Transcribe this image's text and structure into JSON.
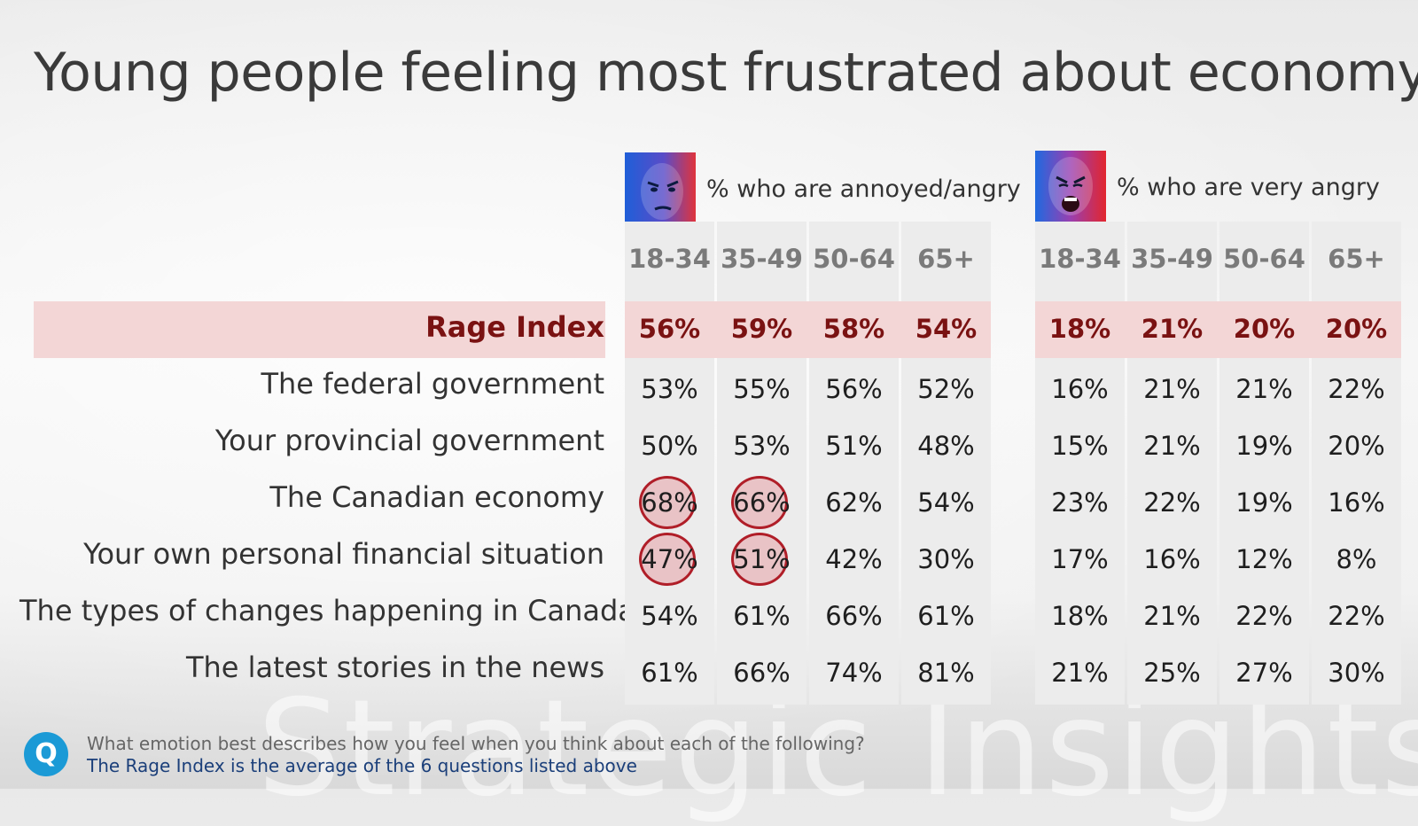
{
  "title": "Young people feeling most frustrated about economy",
  "watermark": "Strategic Insights",
  "panels": [
    {
      "label": "% who are annoyed/angry",
      "icon": "angry-face-icon"
    },
    {
      "label": "% who are very angry",
      "icon": "screaming-face-icon"
    }
  ],
  "footnote": {
    "question": "What emotion best describes how you feel when you think about each of the following?",
    "note": "The Rage Index is the average of the 6 questions listed above",
    "icon": "q-logo-icon"
  },
  "colors": {
    "rage_text": "#7a1212",
    "rage_band": "#f3d6d6",
    "highlight": "#b01e28",
    "note_text": "#1b3f7a"
  },
  "chart_data": {
    "type": "table",
    "title": "Young people feeling most frustrated about economy",
    "column_groups": [
      {
        "name": "% who are annoyed/angry",
        "columns": [
          "18-34",
          "35-49",
          "50-64",
          "65+"
        ]
      },
      {
        "name": "% who are very angry",
        "columns": [
          "18-34",
          "35-49",
          "50-64",
          "65+"
        ]
      }
    ],
    "rows": [
      {
        "label": "Rage Index",
        "annoyed": [
          "56%",
          "59%",
          "58%",
          "54%"
        ],
        "very_angry": [
          "18%",
          "21%",
          "20%",
          "20%"
        ],
        "highlight_row": true
      },
      {
        "label": "The federal government",
        "annoyed": [
          "53%",
          "55%",
          "56%",
          "52%"
        ],
        "very_angry": [
          "16%",
          "21%",
          "21%",
          "22%"
        ]
      },
      {
        "label": "Your provincial government",
        "annoyed": [
          "50%",
          "53%",
          "51%",
          "48%"
        ],
        "very_angry": [
          "15%",
          "21%",
          "19%",
          "20%"
        ]
      },
      {
        "label": "The Canadian economy",
        "annoyed": [
          "68%",
          "66%",
          "62%",
          "54%"
        ],
        "very_angry": [
          "23%",
          "22%",
          "19%",
          "16%"
        ],
        "circled_annoyed": [
          0,
          1
        ]
      },
      {
        "label": "Your own personal financial situation",
        "annoyed": [
          "47%",
          "51%",
          "42%",
          "30%"
        ],
        "very_angry": [
          "17%",
          "16%",
          "12%",
          "8%"
        ],
        "circled_annoyed": [
          0,
          1
        ]
      },
      {
        "label": "The types of changes happening in Canada",
        "annoyed": [
          "54%",
          "61%",
          "66%",
          "61%"
        ],
        "very_angry": [
          "18%",
          "21%",
          "22%",
          "22%"
        ]
      },
      {
        "label": "The latest stories in the news",
        "annoyed": [
          "61%",
          "66%",
          "74%",
          "81%"
        ],
        "very_angry": [
          "21%",
          "25%",
          "27%",
          "30%"
        ]
      }
    ]
  }
}
